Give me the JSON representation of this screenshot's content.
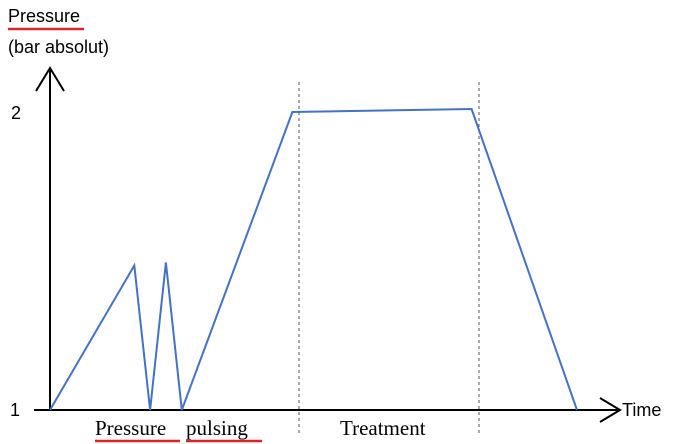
{
  "y_axis": {
    "label_line1": "Pressure",
    "label_line2": "(bar absolut)",
    "tick_top": "2",
    "tick_bottom": "1"
  },
  "x_axis": {
    "label": "Time"
  },
  "phases": {
    "pulsing_word1": "Pressure",
    "pulsing_word2": "pulsing",
    "treatment": "Treatment"
  },
  "colors": {
    "curve": "#4472c4",
    "underline": "#d9262b",
    "axis": "#000000",
    "divider": "#555555"
  },
  "chart_data": {
    "type": "line",
    "xlabel": "Time",
    "ylabel": "Pressure (bar absolut)",
    "y_ticks": [
      1,
      2
    ],
    "ylim": [
      1,
      2
    ],
    "x_ticks": [],
    "series": [
      {
        "points": [
          {
            "x": 0.0,
            "y": 1.0
          },
          {
            "x": 0.16,
            "y": 1.48
          },
          {
            "x": 0.19,
            "y": 1.0
          },
          {
            "x": 0.22,
            "y": 1.49
          },
          {
            "x": 0.25,
            "y": 1.0
          },
          {
            "x": 0.46,
            "y": 1.99
          },
          {
            "x": 0.8,
            "y": 2.0
          },
          {
            "x": 1.0,
            "y": 1.0
          }
        ]
      }
    ],
    "phase_boundaries_x": [
      0.46,
      0.8
    ],
    "annotations": [
      "Pressure pulsing",
      "Treatment"
    ]
  }
}
